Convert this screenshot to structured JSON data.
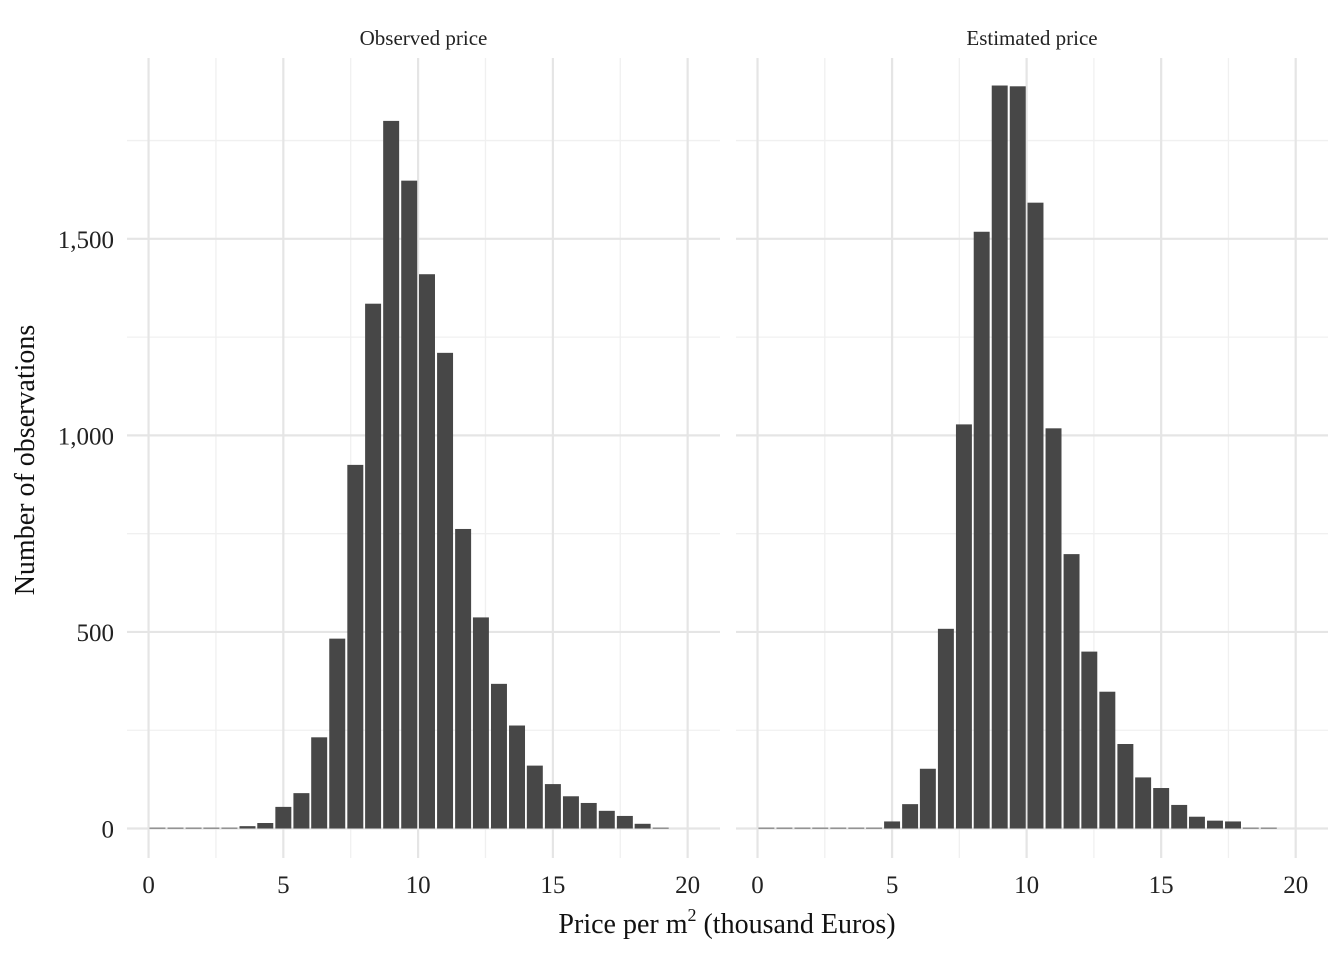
{
  "chart_data": {
    "type": "bar",
    "xlabel_main": "Price per m",
    "xlabel_sup": "2",
    "xlabel_rest": " (thousand Euros)",
    "ylabel": "Number of observations",
    "x_ticks": [
      "0",
      "5",
      "10",
      "15",
      "20"
    ],
    "y_ticks": [
      "0",
      "500",
      "1,000",
      "1,500"
    ],
    "x_range": [
      -0.8,
      21.2
    ],
    "y_range": [
      -75,
      1960
    ],
    "bin_width": 0.667,
    "bar_color": "#474747",
    "grid": true,
    "panels": [
      {
        "title": "Observed price",
        "x": [
          0.33,
          1.0,
          1.67,
          2.33,
          3.0,
          3.67,
          4.33,
          5.0,
          5.67,
          6.33,
          7.0,
          7.67,
          8.33,
          9.0,
          9.67,
          10.33,
          11.0,
          11.67,
          12.33,
          13.0,
          13.67,
          14.33,
          15.0,
          15.67,
          16.33,
          17.0,
          17.67,
          18.33,
          19.0
        ],
        "values": [
          0,
          2,
          0,
          0,
          1,
          6,
          14,
          55,
          90,
          232,
          483,
          925,
          1335,
          1800,
          1648,
          1410,
          1210,
          762,
          537,
          368,
          262,
          160,
          113,
          82,
          65,
          45,
          32,
          12,
          0
        ]
      },
      {
        "title": "Estimated price",
        "x": [
          0.33,
          1.0,
          1.67,
          2.33,
          3.0,
          3.67,
          4.33,
          5.0,
          5.67,
          6.33,
          7.0,
          7.67,
          8.33,
          9.0,
          9.67,
          10.33,
          11.0,
          11.67,
          12.33,
          13.0,
          13.67,
          14.33,
          15.0,
          15.67,
          16.33,
          17.0,
          17.67,
          18.33,
          19.0
        ],
        "values": [
          0,
          0,
          0,
          0,
          0,
          0,
          0,
          18,
          62,
          152,
          508,
          1028,
          1518,
          1890,
          1888,
          1592,
          1018,
          698,
          450,
          348,
          215,
          130,
          103,
          60,
          30,
          20,
          18,
          0,
          0
        ]
      }
    ]
  }
}
